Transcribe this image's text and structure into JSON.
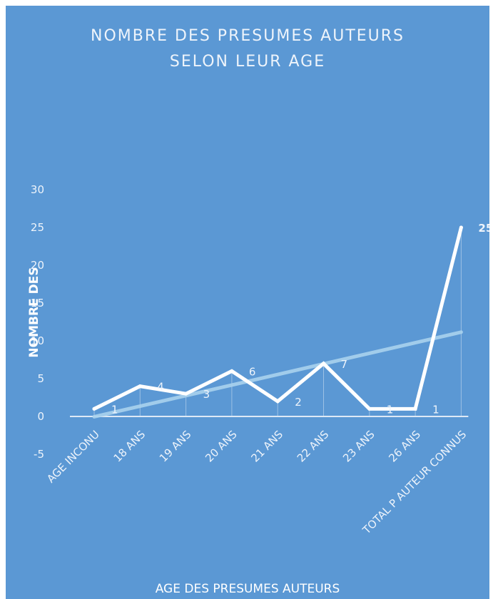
{
  "chart_data": {
    "type": "line",
    "title": "NOMBRE DES PRESUMES AUTEURS\nSELON LEUR AGE",
    "title_lines": [
      "NOMBRE DES PRESUMES AUTEURS",
      "SELON LEUR AGE"
    ],
    "xlabel": "AGE DES PRESUMES AUTEURS",
    "ylabel": "NOMBRE DES",
    "categories": [
      "AGE INCONU",
      "18 ANS",
      "19 ANS",
      "20 ANS",
      "21 ANS",
      "22 ANS",
      "23 ANS",
      "26 ANS",
      "TOTAL P AUTEUR CONNUS"
    ],
    "series": [
      {
        "values": [
          1,
          4,
          3,
          6,
          2,
          7,
          1,
          1,
          25
        ]
      }
    ],
    "data_labels": [
      "1",
      "4",
      "3",
      "6",
      "2",
      "7",
      "1",
      "1",
      "25"
    ],
    "trendline": {
      "type": "linear",
      "visible": true
    },
    "yticks": [
      -5,
      0,
      5,
      10,
      15,
      20,
      25,
      30
    ],
    "ytick_labels": [
      "-5",
      "0",
      "5",
      "10",
      "15",
      "20",
      "25",
      "30"
    ],
    "ylim": [
      -5,
      30
    ],
    "grid": false,
    "legend": "none",
    "colors": {
      "background": "#5b98d4",
      "series": "#ffffff",
      "trendline": "#a9d2ee",
      "text": "#eef4fb",
      "axis": "#dde9f6"
    }
  }
}
